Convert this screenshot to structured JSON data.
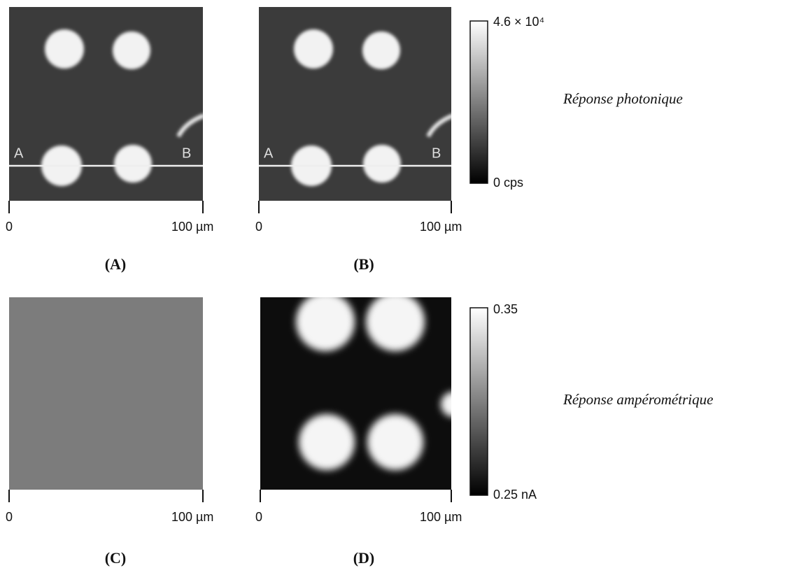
{
  "panels": [
    {
      "label": "(A)",
      "scale_start": "0",
      "scale_end": "100 µm",
      "point_labels": [
        "A",
        "B"
      ]
    },
    {
      "label": "(B)",
      "scale_start": "0",
      "scale_end": "100 µm",
      "point_labels": [
        "A",
        "B"
      ]
    },
    {
      "label": "(C)",
      "scale_start": "0",
      "scale_end": "100 µm"
    },
    {
      "label": "(D)",
      "scale_start": "0",
      "scale_end": "100 µm"
    }
  ],
  "colorbars": [
    {
      "max": "4.6 × 10⁴",
      "min": "0 cps",
      "caption": "Réponse photonique"
    },
    {
      "max": "0.35",
      "min": "0.25 nA",
      "caption": "Réponse ampérométrique"
    }
  ]
}
